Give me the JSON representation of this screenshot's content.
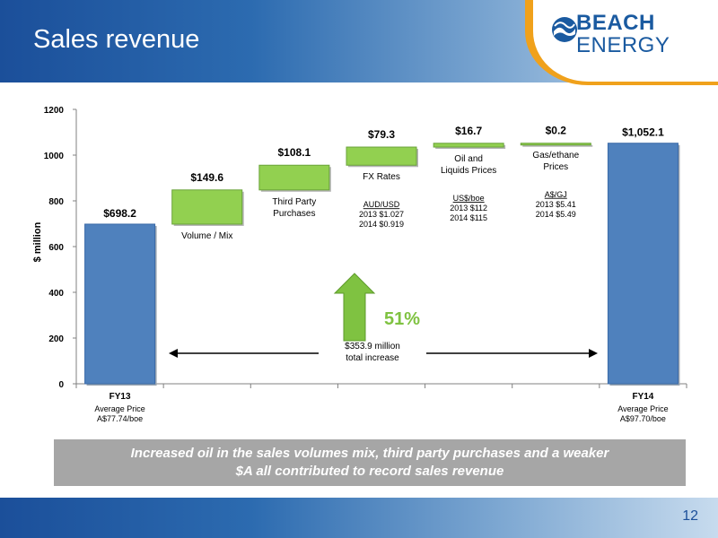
{
  "header": {
    "title": "Sales revenue"
  },
  "logo": {
    "line1": "BEACH",
    "line2": "ENERGY"
  },
  "colors": {
    "bar_end": "#4f81bd",
    "bar_step": "#92d050",
    "accent_green": "#7fc241",
    "brand_blue": "#1b4f9a",
    "brand_orange": "#f0a11b"
  },
  "chart_data": {
    "type": "bar",
    "subtype": "waterfall",
    "ylabel": "$ million",
    "ylim": [
      0,
      1200
    ],
    "yticks": [
      0,
      200,
      400,
      600,
      800,
      1000,
      1200
    ],
    "grid": false,
    "categories": [
      "FY13",
      "Volume / Mix",
      "Third Party Purchases",
      "FX Rates",
      "Oil and Liquids Prices",
      "Gas/ethane Prices",
      "FY14"
    ],
    "steps": [
      {
        "kind": "total",
        "value": 698.2,
        "label": "$698.2",
        "category_lines": [
          "FY13"
        ],
        "sub_lines": [
          "Average Price",
          "A$77.74/boe"
        ]
      },
      {
        "kind": "delta",
        "value": 149.6,
        "label": "$149.6",
        "name_lines": [
          "Volume / Mix"
        ],
        "detail_lines": []
      },
      {
        "kind": "delta",
        "value": 108.1,
        "label": "$108.1",
        "name_lines": [
          "Third Party",
          "Purchases"
        ],
        "detail_lines": []
      },
      {
        "kind": "delta",
        "value": 79.3,
        "label": "$79.3",
        "name_lines": [
          "FX Rates"
        ],
        "detail_lines": [
          "AUD/USD",
          "2013 $1.027",
          "2014 $0.919"
        ]
      },
      {
        "kind": "delta",
        "value": 16.7,
        "label": "$16.7",
        "name_lines": [
          "Oil and",
          "Liquids Prices"
        ],
        "detail_lines": [
          "US$/boe",
          "2013 $112",
          "2014 $115"
        ]
      },
      {
        "kind": "delta",
        "value": 0.2,
        "label": "$0.2",
        "name_lines": [
          "Gas/ethane",
          "Prices"
        ],
        "detail_lines": [
          "A$/GJ",
          "2013 $5.41",
          "2014 $5.49"
        ]
      },
      {
        "kind": "total",
        "value": 1052.1,
        "label": "$1,052.1",
        "category_lines": [
          "FY14"
        ],
        "sub_lines": [
          "Average Price",
          "A$97.70/boe"
        ]
      }
    ],
    "annotations": {
      "increase_pct": "51%",
      "increase_lines": [
        "$353.9 million",
        "total increase"
      ]
    }
  },
  "caption": {
    "lines": [
      "Increased oil in the sales volumes mix, third party purchases and a weaker",
      "$A all contributed to record sales revenue"
    ]
  },
  "footer": {
    "page_number": "12"
  }
}
